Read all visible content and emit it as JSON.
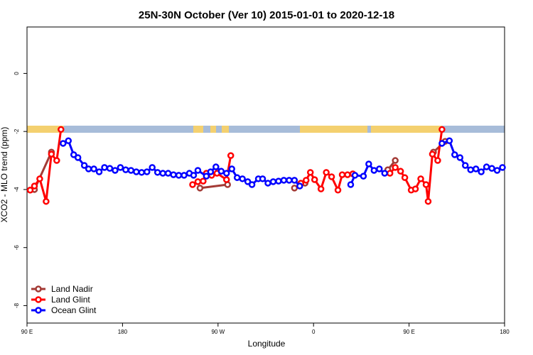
{
  "chart_data": {
    "type": "line",
    "title": "25N-30N October (Ver 10)   2015-01-01 to 2020-12-18",
    "x_label": "Longitude",
    "y_label": "XCO2 - MLO trend (ppm)",
    "xlim": [
      90,
      540
    ],
    "ylim": [
      -8.6,
      1.6
    ],
    "xticks": [
      {
        "value": 90,
        "label": "90 E"
      },
      {
        "value": 180,
        "label": "180"
      },
      {
        "value": 270,
        "label": "90 W"
      },
      {
        "value": 360,
        "label": "0"
      },
      {
        "value": 450,
        "label": "90 E"
      },
      {
        "value": 540,
        "label": "180"
      }
    ],
    "yticks": [
      0,
      -2,
      -4,
      -6,
      -8
    ],
    "legend": "bottom-left",
    "series": [
      {
        "name": "Land Nadir",
        "color": "#a33a35",
        "x": [
          93,
          97,
          113,
          180,
          253,
          279,
          315,
          342,
          352,
          400,
          430,
          437,
          460,
          473,
          484
        ],
        "values": [
          -4.02,
          -4.0,
          -2.71,
          null,
          -3.95,
          -3.83,
          null,
          -3.95,
          -3.78,
          null,
          -3.32,
          -3.0,
          null,
          -2.71,
          -2.34
        ]
      },
      {
        "name": "Land Glint",
        "color": "#ff0000",
        "x": [
          93,
          97,
          102,
          108,
          113,
          118,
          122,
          180,
          246,
          251,
          256,
          259,
          264,
          269,
          278,
          282,
          315,
          348,
          353,
          357,
          361,
          367,
          372,
          377,
          383,
          387,
          392,
          397,
          415,
          432,
          437,
          442,
          446,
          452,
          456,
          461,
          466,
          468,
          472,
          477,
          481
        ],
        "values": [
          -4.02,
          -3.88,
          -3.63,
          -4.41,
          -2.78,
          -3.0,
          -1.93,
          null,
          -3.83,
          -3.73,
          -3.71,
          -3.44,
          -3.51,
          -3.44,
          -3.66,
          -2.83,
          null,
          -3.78,
          -3.68,
          -3.41,
          -3.66,
          -3.98,
          -3.41,
          -3.56,
          -4.02,
          -3.49,
          -3.49,
          -3.46,
          null,
          -3.44,
          -3.24,
          -3.37,
          -3.59,
          -4.02,
          -3.98,
          -3.63,
          -3.83,
          -4.41,
          -2.78,
          -3.0,
          -1.93
        ]
      },
      {
        "name": "Ocean Glint",
        "color": "#0000ff",
        "x": [
          124,
          129,
          134,
          138,
          144,
          148,
          153,
          158,
          163,
          168,
          173,
          178,
          183,
          188,
          193,
          198,
          203,
          208,
          213,
          218,
          223,
          228,
          233,
          238,
          243,
          247,
          251,
          259,
          263,
          268,
          273,
          278,
          283,
          288,
          293,
          298,
          302,
          308,
          312,
          317,
          322,
          327,
          332,
          337,
          342,
          347,
          370,
          395,
          399,
          407,
          412,
          417,
          422,
          427,
          450,
          481,
          488,
          493,
          498,
          503,
          508,
          513,
          518,
          523,
          528,
          533,
          538
        ],
        "values": [
          -2.41,
          -2.32,
          -2.8,
          -2.9,
          -3.17,
          -3.29,
          -3.29,
          -3.39,
          -3.24,
          -3.27,
          -3.34,
          -3.24,
          -3.32,
          -3.34,
          -3.39,
          -3.41,
          -3.39,
          -3.24,
          -3.41,
          -3.44,
          -3.44,
          -3.49,
          -3.51,
          -3.51,
          -3.44,
          -3.51,
          -3.34,
          -3.54,
          -3.39,
          -3.22,
          -3.37,
          -3.44,
          -3.29,
          -3.59,
          -3.63,
          -3.73,
          -3.83,
          -3.63,
          -3.63,
          -3.78,
          -3.73,
          -3.71,
          -3.68,
          -3.68,
          -3.68,
          -3.88,
          null,
          -3.83,
          -3.51,
          -3.54,
          -3.12,
          -3.34,
          -3.29,
          -3.44,
          null,
          -2.41,
          -2.32,
          -2.8,
          -2.9,
          -3.17,
          -3.32,
          -3.29,
          -3.39,
          -3.22,
          -3.27,
          -3.34,
          -3.24
        ]
      }
    ]
  }
}
